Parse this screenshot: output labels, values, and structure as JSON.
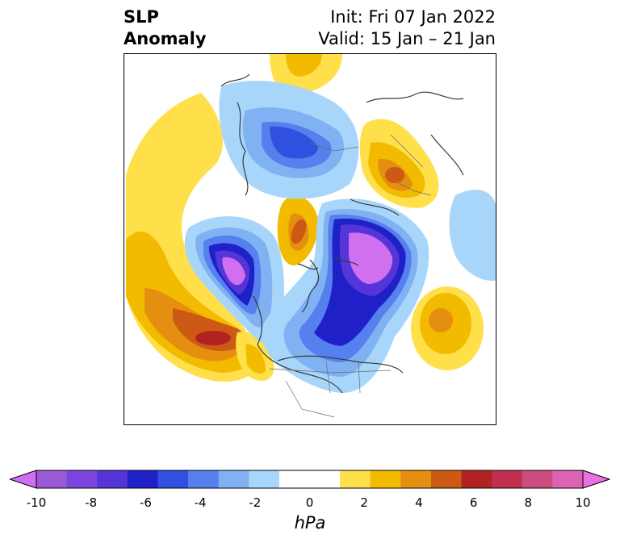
{
  "header": {
    "variable_line1": "SLP",
    "variable_line2": "Anomaly",
    "init_label": "Init: Fri 07 Jan 2022",
    "valid_label": "Valid: 15 Jan – 21 Jan"
  },
  "colorbar": {
    "unit": "hPa",
    "ticks": [
      "-10",
      "-8",
      "-6",
      "-4",
      "-2",
      "0",
      "2",
      "4",
      "6",
      "8",
      "10"
    ],
    "colors": [
      "#9b59d6",
      "#7b46dd",
      "#5535d8",
      "#2020c8",
      "#3050e0",
      "#5580ee",
      "#80b2f3",
      "#a8d6fa",
      "#ffffff",
      "#ffffff",
      "#ffe04a",
      "#f2bb00",
      "#e58f10",
      "#cc5a15",
      "#b32222",
      "#c03050",
      "#cc4d7d",
      "#dd64b5"
    ],
    "end_low": "#d070f0",
    "end_high": "#e870e0"
  },
  "map": {
    "projection": "north-polar-stereographic"
  }
}
